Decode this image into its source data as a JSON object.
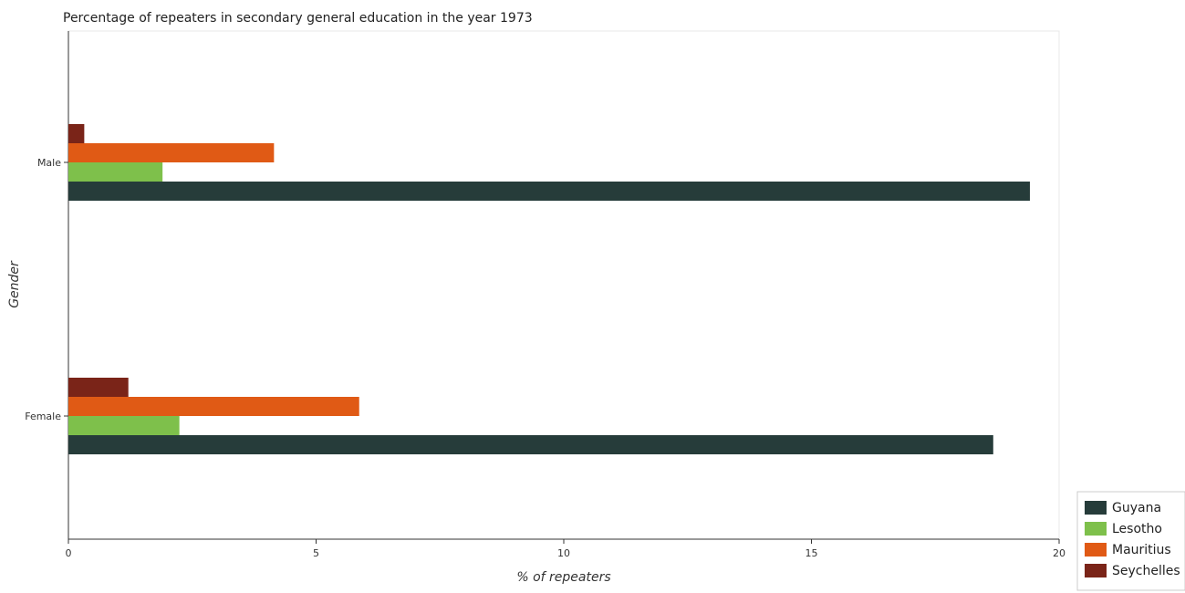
{
  "chart_data": {
    "type": "bar",
    "orientation": "horizontal",
    "title": "Percentage of repeaters in secondary general education in the year 1973",
    "xlabel": "% of repeaters",
    "ylabel": "Gender",
    "categories": [
      "Female",
      "Male"
    ],
    "xlim": [
      0,
      20.5
    ],
    "xticks": [
      0,
      5,
      10,
      15,
      20
    ],
    "grid": false,
    "legend_position": "bottom-right",
    "series": [
      {
        "name": "Guyana",
        "color": "#263c3a",
        "values": [
          18.67,
          19.41
        ]
      },
      {
        "name": "Lesotho",
        "color": "#7ec04b",
        "values": [
          2.24,
          1.9
        ]
      },
      {
        "name": "Mauritius",
        "color": "#e05a15",
        "values": [
          5.87,
          4.15
        ]
      },
      {
        "name": "Seychelles",
        "color": "#7a2418",
        "values": [
          1.21,
          0.32
        ]
      }
    ]
  }
}
